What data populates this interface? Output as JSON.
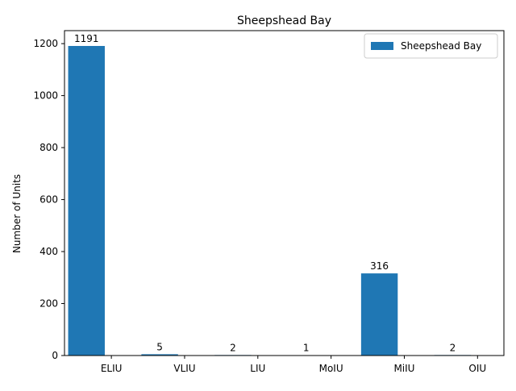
{
  "chart_data": {
    "type": "bar",
    "title": "Sheepshead Bay",
    "xlabel": "",
    "ylabel": "Number of Units",
    "categories": [
      "ELIU",
      "VLIU",
      "LIU",
      "MoIU",
      "MiIU",
      "OIU"
    ],
    "series": [
      {
        "name": "Sheepshead Bay",
        "values": [
          1191,
          5,
          2,
          1,
          316,
          2
        ],
        "color": "#1f77b4"
      }
    ],
    "data_labels": [
      "1191",
      "5",
      "2",
      "1",
      "316",
      "2"
    ],
    "ylim": [
      0,
      1250
    ],
    "yticks": [
      0,
      200,
      400,
      600,
      800,
      1000,
      1200
    ],
    "ytick_labels": [
      "0",
      "200",
      "400",
      "600",
      "800",
      "1000",
      "1200"
    ],
    "grid": false,
    "legend_position": "top-right"
  }
}
